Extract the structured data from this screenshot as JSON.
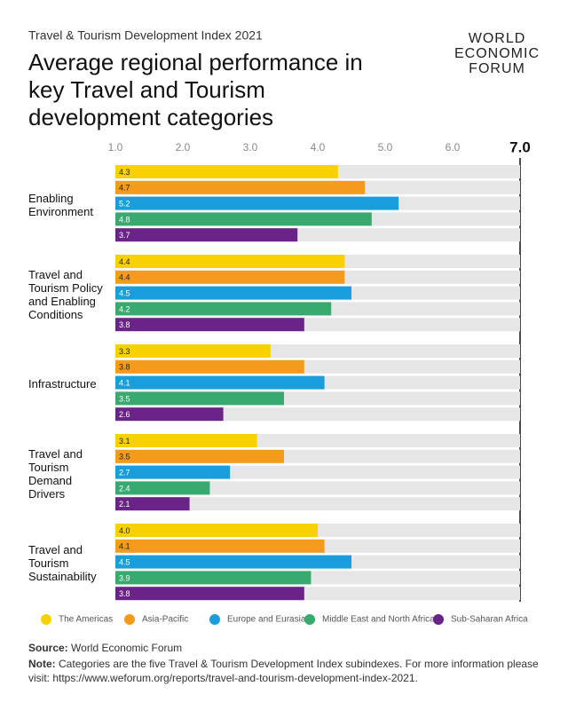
{
  "logo": [
    "WORLD",
    "ECONOMIC",
    "FORUM"
  ],
  "chart_data": {
    "type": "bar",
    "orientation": "horizontal",
    "subtitle": "Travel & Tourism Development Index 2021",
    "title": "Average regional performance in key Travel and Tourism development categories",
    "categories": [
      "Enabling Environment",
      "Travel and Tourism Policy and Enabling Conditions",
      "Infrastructure",
      "Travel and Tourism Demand Drivers",
      "Travel and Tourism Sustainability"
    ],
    "series": [
      {
        "name": "The Americas",
        "color": "#f9d100",
        "values": [
          4.3,
          4.4,
          3.3,
          3.1,
          4.0
        ],
        "value_labels": [
          "4.3",
          "4.4",
          "3.3",
          "3.1",
          "4.0"
        ]
      },
      {
        "name": "Asia-Pacific",
        "color": "#f49b1c",
        "values": [
          4.7,
          4.4,
          3.8,
          3.5,
          4.1
        ],
        "value_labels": [
          "4.7",
          "4.4",
          "3.8",
          "3.5",
          "4.1"
        ]
      },
      {
        "name": "Europe and Eurasia",
        "color": "#1a9ddb",
        "values": [
          5.2,
          4.5,
          4.1,
          2.7,
          4.5
        ],
        "value_labels": [
          "5.2",
          "4.5",
          "4.1",
          "2.7",
          "4.5"
        ]
      },
      {
        "name": "Middle East and North Africa",
        "color": "#38a96f",
        "values": [
          4.8,
          4.2,
          3.5,
          2.4,
          3.9
        ],
        "value_labels": [
          "4.8",
          "4.2",
          "3.5",
          "2.4",
          "3.9"
        ]
      },
      {
        "name": "Sub-Saharan Africa",
        "color": "#6a2487",
        "values": [
          3.7,
          3.8,
          2.6,
          2.1,
          3.8
        ],
        "value_labels": [
          "3.7",
          "3.8",
          "2.6",
          "2.1",
          "3.8"
        ]
      }
    ],
    "xlim": [
      1,
      7
    ],
    "xticks": [
      {
        "value": 1,
        "label": "1.0"
      },
      {
        "value": 2,
        "label": "2.0"
      },
      {
        "value": 3,
        "label": "3.0"
      },
      {
        "value": 4,
        "label": "4.0"
      },
      {
        "value": 5,
        "label": "5.0"
      },
      {
        "value": 6,
        "label": "6.0"
      },
      {
        "value": 7,
        "label": "7.0"
      }
    ],
    "source_label": "Source:",
    "source": "World Economic Forum",
    "note_label": "Note:",
    "note": "Categories are the five Travel & Tourism Development Index subindexes. For more information please visit: https://www.weforum.org/reports/travel-and-tourism-development-index-2021."
  }
}
